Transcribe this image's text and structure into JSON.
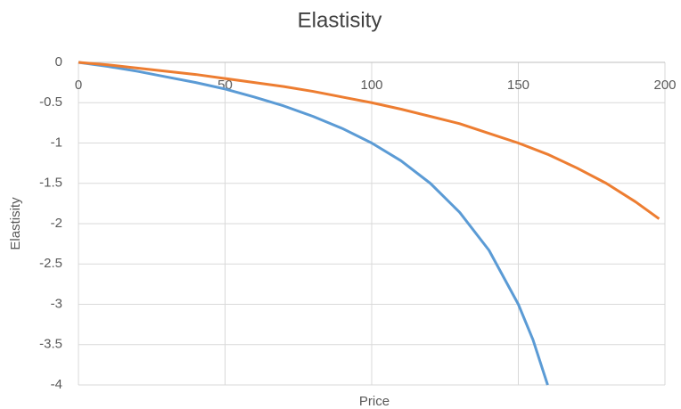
{
  "chart_data": {
    "type": "line",
    "title": "Elastisity",
    "x_label": "Price",
    "y_label": "Elastisity",
    "xlim": [
      0,
      200
    ],
    "xticks": [
      0,
      50,
      100,
      150,
      200
    ],
    "ylim": [
      -4,
      0
    ],
    "yticks": [
      0,
      -0.5,
      -1,
      -1.5,
      -2,
      -2.5,
      -3,
      -3.5,
      -4
    ],
    "grid": true,
    "series": [
      {
        "color": "#5b9bd5",
        "x": [
          0,
          10,
          20,
          30,
          40,
          50,
          60,
          70,
          80,
          90,
          100,
          110,
          120,
          130,
          140,
          150,
          155,
          160
        ],
        "values": [
          0,
          -0.05,
          -0.11,
          -0.18,
          -0.25,
          -0.33,
          -0.43,
          -0.54,
          -0.67,
          -0.82,
          -1,
          -1.22,
          -1.5,
          -1.86,
          -2.33,
          -3,
          -3.44,
          -4
        ]
      },
      {
        "color": "#ed7d31",
        "x": [
          0,
          10,
          20,
          30,
          40,
          50,
          60,
          70,
          80,
          90,
          100,
          110,
          120,
          130,
          140,
          150,
          160,
          170,
          180,
          190,
          198
        ],
        "values": [
          0,
          -0.03,
          -0.07,
          -0.11,
          -0.15,
          -0.2,
          -0.25,
          -0.3,
          -0.36,
          -0.43,
          -0.5,
          -0.58,
          -0.67,
          -0.76,
          -0.88,
          -1,
          -1.14,
          -1.31,
          -1.5,
          -1.73,
          -1.94
        ]
      }
    ]
  }
}
